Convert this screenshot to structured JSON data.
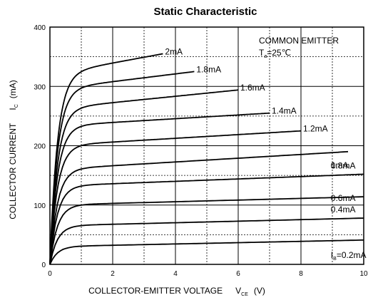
{
  "chart_data": {
    "type": "line",
    "title": "Static Characteristic",
    "xlabel": "COLLECTOR-EMITTER VOLTAGE",
    "xlabel_symbol": "V",
    "xlabel_subscript": "CE",
    "xlabel_unit": "(V)",
    "ylabel": "COLLECTOR CURRENT",
    "ylabel_symbol": "I",
    "ylabel_subscript": "C",
    "ylabel_unit": "(mA)",
    "xlim": [
      0,
      10
    ],
    "ylim": [
      0,
      400
    ],
    "xticks": [
      "0",
      "2",
      "4",
      "6",
      "8",
      "10"
    ],
    "yticks": [
      "0",
      "100",
      "200",
      "300",
      "400"
    ],
    "grid": true,
    "annotation_lines": [
      "COMMON EMITTER",
      "T",
      "a",
      "=25℃"
    ],
    "series": [
      {
        "name": "I",
        "label_sub": "B",
        "label_rest": "=0.2mA",
        "sat": 30,
        "end_x": 10,
        "end_y": 41
      },
      {
        "name": "0.4mA",
        "sat": 65,
        "end_x": 10,
        "end_y": 78
      },
      {
        "name": "0.6mA",
        "sat": 100,
        "end_x": 10,
        "end_y": 114
      },
      {
        "name": "0.8mA",
        "sat": 132,
        "end_x": 10,
        "end_y": 152
      },
      {
        "name": "1mA",
        "sat": 160,
        "end_x": 9.5,
        "end_y": 190
      },
      {
        "name": "1.2mA",
        "sat": 200,
        "end_x": 8.0,
        "end_y": 225
      },
      {
        "name": "1.4mA",
        "sat": 233,
        "end_x": 7.0,
        "end_y": 255
      },
      {
        "name": "1.6mA",
        "sat": 262,
        "end_x": 6.0,
        "end_y": 294
      },
      {
        "name": "1.8mA",
        "sat": 295,
        "end_x": 4.6,
        "end_y": 325
      },
      {
        "name": "2mA",
        "sat": 320,
        "end_x": 3.6,
        "end_y": 355
      }
    ]
  }
}
